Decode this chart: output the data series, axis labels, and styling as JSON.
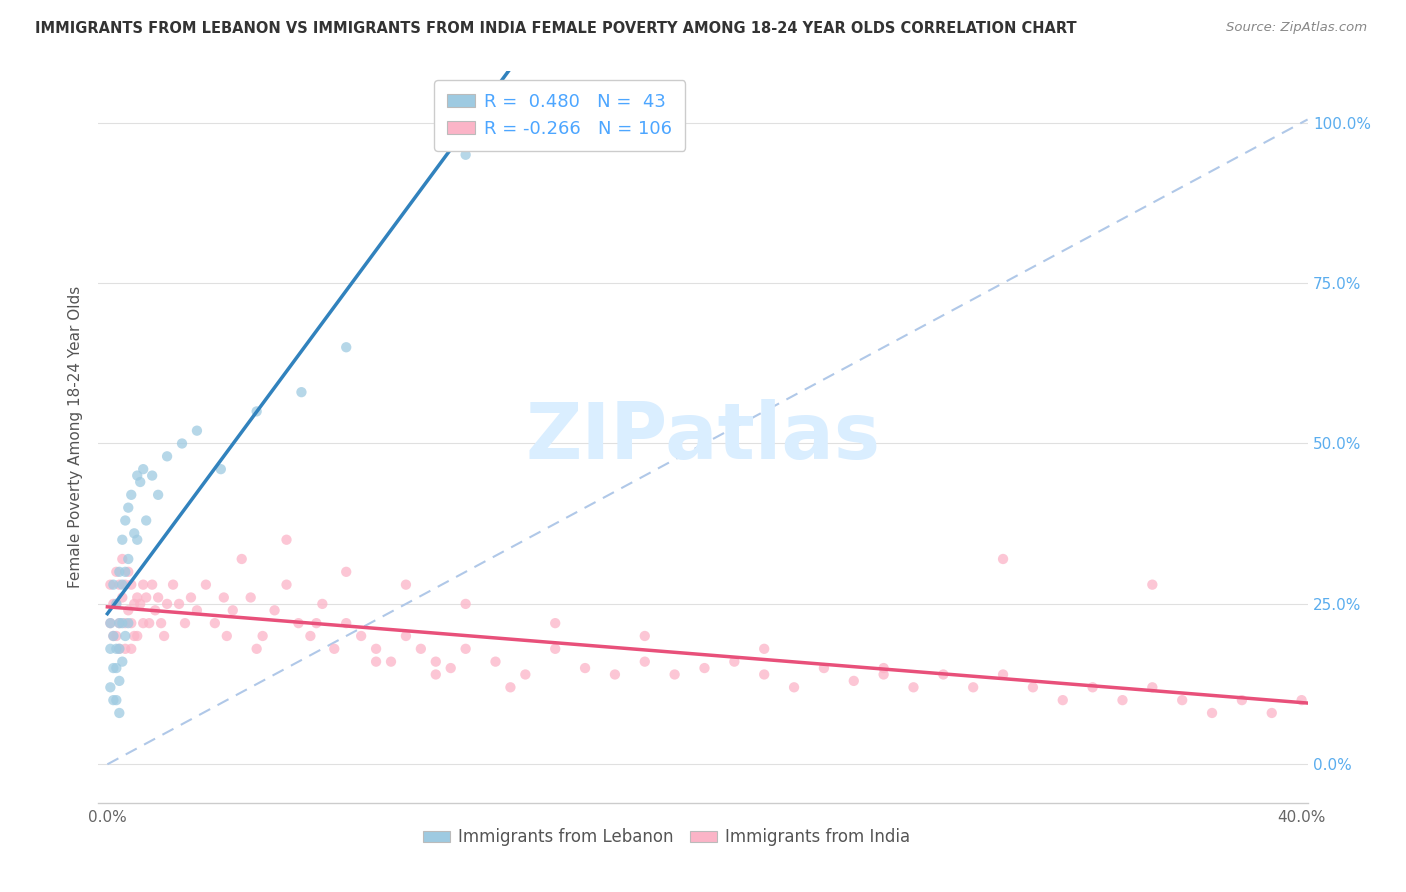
{
  "title": "IMMIGRANTS FROM LEBANON VS IMMIGRANTS FROM INDIA FEMALE POVERTY AMONG 18-24 YEAR OLDS CORRELATION CHART",
  "source": "Source: ZipAtlas.com",
  "ylabel": "Female Poverty Among 18-24 Year Olds",
  "xlim_min": -0.003,
  "xlim_max": 0.402,
  "ylim_min": -0.06,
  "ylim_max": 1.08,
  "right_ytick_vals": [
    0.0,
    0.25,
    0.5,
    0.75,
    1.0
  ],
  "right_yticklabels": [
    "0.0%",
    "25.0%",
    "50.0%",
    "75.0%",
    "100.0%"
  ],
  "xtick_positions": [
    0.0,
    0.1,
    0.2,
    0.3,
    0.4
  ],
  "xticklabels": [
    "0.0%",
    "",
    "",
    "",
    "40.0%"
  ],
  "legend_blue_label": "R =  0.480   N =  43",
  "legend_pink_label": "R = -0.266   N = 106",
  "legend_bottom_blue": "Immigrants from Lebanon",
  "legend_bottom_pink": "Immigrants from India",
  "blue_scatter_color": "#9ecae1",
  "pink_scatter_color": "#fbb4c7",
  "blue_line_color": "#3182bd",
  "pink_line_color": "#e8507a",
  "ref_line_color": "#b0c8e8",
  "grid_color": "#e0e0e0",
  "right_axis_color": "#5badee",
  "legend_text_color": "#4da6ff",
  "bottom_legend_text_color": "#555555",
  "ylabel_color": "#555555",
  "title_color": "#333333",
  "source_color": "#888888",
  "watermark_color": "#daeeff",
  "scatter_size": 55,
  "scatter_alpha": 0.75,
  "lebanon_x": [
    0.001,
    0.001,
    0.001,
    0.002,
    0.002,
    0.002,
    0.002,
    0.003,
    0.003,
    0.003,
    0.003,
    0.004,
    0.004,
    0.004,
    0.004,
    0.004,
    0.005,
    0.005,
    0.005,
    0.005,
    0.006,
    0.006,
    0.006,
    0.007,
    0.007,
    0.007,
    0.008,
    0.009,
    0.01,
    0.01,
    0.011,
    0.012,
    0.013,
    0.015,
    0.017,
    0.02,
    0.025,
    0.03,
    0.038,
    0.05,
    0.065,
    0.08,
    0.12
  ],
  "lebanon_y": [
    0.22,
    0.18,
    0.12,
    0.28,
    0.2,
    0.15,
    0.1,
    0.25,
    0.18,
    0.15,
    0.1,
    0.3,
    0.22,
    0.18,
    0.13,
    0.08,
    0.35,
    0.28,
    0.22,
    0.16,
    0.38,
    0.3,
    0.2,
    0.4,
    0.32,
    0.22,
    0.42,
    0.36,
    0.45,
    0.35,
    0.44,
    0.46,
    0.38,
    0.45,
    0.42,
    0.48,
    0.5,
    0.52,
    0.46,
    0.55,
    0.58,
    0.65,
    0.95
  ],
  "india_x": [
    0.001,
    0.001,
    0.002,
    0.002,
    0.003,
    0.003,
    0.003,
    0.004,
    0.004,
    0.004,
    0.005,
    0.005,
    0.006,
    0.006,
    0.006,
    0.007,
    0.007,
    0.008,
    0.008,
    0.008,
    0.009,
    0.009,
    0.01,
    0.01,
    0.011,
    0.012,
    0.012,
    0.013,
    0.014,
    0.015,
    0.016,
    0.017,
    0.018,
    0.019,
    0.02,
    0.022,
    0.024,
    0.026,
    0.028,
    0.03,
    0.033,
    0.036,
    0.039,
    0.042,
    0.045,
    0.048,
    0.052,
    0.056,
    0.06,
    0.064,
    0.068,
    0.072,
    0.076,
    0.08,
    0.085,
    0.09,
    0.095,
    0.1,
    0.105,
    0.11,
    0.115,
    0.12,
    0.13,
    0.14,
    0.15,
    0.16,
    0.17,
    0.18,
    0.19,
    0.2,
    0.21,
    0.22,
    0.23,
    0.24,
    0.25,
    0.26,
    0.27,
    0.28,
    0.29,
    0.3,
    0.31,
    0.32,
    0.33,
    0.34,
    0.35,
    0.36,
    0.37,
    0.38,
    0.39,
    0.4,
    0.06,
    0.08,
    0.1,
    0.12,
    0.15,
    0.18,
    0.22,
    0.26,
    0.3,
    0.35,
    0.04,
    0.05,
    0.07,
    0.09,
    0.11,
    0.135
  ],
  "india_y": [
    0.28,
    0.22,
    0.25,
    0.2,
    0.3,
    0.25,
    0.2,
    0.28,
    0.22,
    0.18,
    0.32,
    0.26,
    0.28,
    0.22,
    0.18,
    0.3,
    0.24,
    0.28,
    0.22,
    0.18,
    0.25,
    0.2,
    0.26,
    0.2,
    0.25,
    0.28,
    0.22,
    0.26,
    0.22,
    0.28,
    0.24,
    0.26,
    0.22,
    0.2,
    0.25,
    0.28,
    0.25,
    0.22,
    0.26,
    0.24,
    0.28,
    0.22,
    0.26,
    0.24,
    0.32,
    0.26,
    0.2,
    0.24,
    0.28,
    0.22,
    0.2,
    0.25,
    0.18,
    0.22,
    0.2,
    0.18,
    0.16,
    0.2,
    0.18,
    0.16,
    0.15,
    0.18,
    0.16,
    0.14,
    0.18,
    0.15,
    0.14,
    0.16,
    0.14,
    0.15,
    0.16,
    0.14,
    0.12,
    0.15,
    0.13,
    0.14,
    0.12,
    0.14,
    0.12,
    0.14,
    0.12,
    0.1,
    0.12,
    0.1,
    0.12,
    0.1,
    0.08,
    0.1,
    0.08,
    0.1,
    0.35,
    0.3,
    0.28,
    0.25,
    0.22,
    0.2,
    0.18,
    0.15,
    0.32,
    0.28,
    0.2,
    0.18,
    0.22,
    0.16,
    0.14,
    0.12
  ]
}
